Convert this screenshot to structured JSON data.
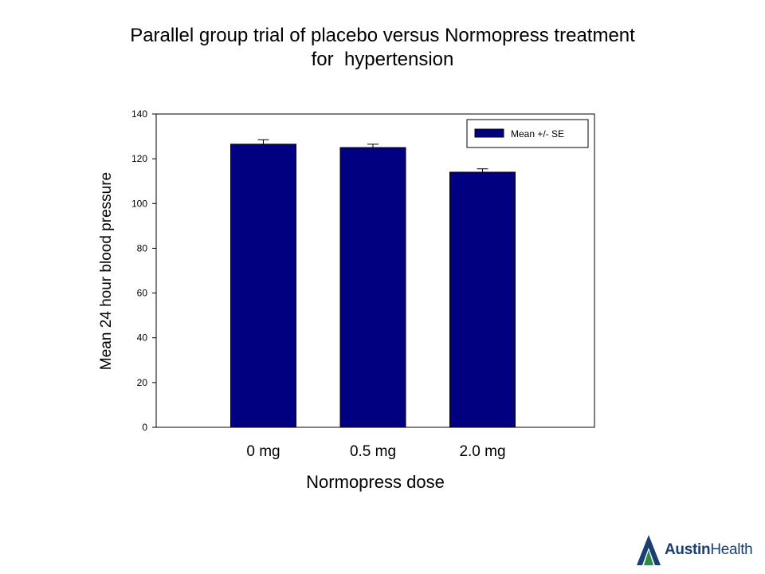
{
  "chart_data": {
    "type": "bar",
    "title_lines": [
      "Parallel group trial of placebo versus Normopress treatment",
      "for  hypertension"
    ],
    "categories": [
      "0 mg",
      "0.5 mg",
      "2.0 mg"
    ],
    "series": [
      {
        "name": "Mean +/- SE",
        "values": [
          126.5,
          125,
          114
        ],
        "errors": [
          2,
          1.5,
          1.5
        ]
      }
    ],
    "xlabel": "Normopress dose",
    "ylabel": "Mean 24 hour blood pressure",
    "ylim": [
      0,
      140
    ],
    "yticks": [
      0,
      20,
      40,
      60,
      80,
      100,
      120,
      140
    ],
    "grid": false,
    "legend": "top-right",
    "bar_color": "#000080"
  },
  "brand": {
    "name_bold": "Austin",
    "name_regular": "Health",
    "color": "#1a3f73",
    "accent": "#2f8a4a"
  }
}
